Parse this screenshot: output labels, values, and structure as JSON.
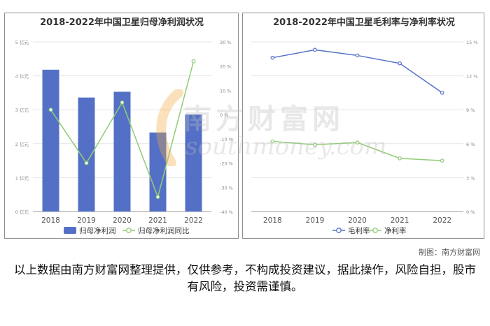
{
  "chart_data": [
    {
      "type": "bar+line",
      "title": "2018-2022年中国卫星归母净利润状况",
      "categories": [
        "2018",
        "2019",
        "2020",
        "2021",
        "2022"
      ],
      "series": [
        {
          "name": "归母净利润",
          "axis": "left",
          "kind": "bar",
          "values": [
            4.18,
            3.36,
            3.53,
            2.33,
            2.86
          ]
        },
        {
          "name": "归母净利润同比",
          "axis": "right",
          "kind": "line",
          "values": [
            2,
            -20,
            5,
            -34,
            22
          ]
        }
      ],
      "y_left": {
        "min": 0,
        "max": 5,
        "ticks": [
          "0 亿元",
          "1 亿元",
          "2 亿元",
          "3 亿元",
          "4 亿元",
          "5 亿元"
        ]
      },
      "y_right": {
        "min": -40,
        "max": 30,
        "ticks": [
          "-40 %",
          "-30 %",
          "-20 %",
          "-10 %",
          "0 %",
          "10 %",
          "20 %",
          "30 %"
        ]
      },
      "legend_position": "bottom",
      "colors": {
        "bar": "#5470c6",
        "line": "#91cc75"
      }
    },
    {
      "type": "line",
      "title": "2018-2022年中国卫星毛利率与净利率状况",
      "categories": [
        "2018",
        "2019",
        "2020",
        "2021",
        "2022"
      ],
      "series": [
        {
          "name": "毛利率",
          "values": [
            13.6,
            14.3,
            13.8,
            13.1,
            10.5
          ]
        },
        {
          "name": "净利率",
          "values": [
            6.2,
            5.9,
            6.1,
            4.7,
            4.5
          ]
        }
      ],
      "y_right": {
        "min": 0,
        "max": 15,
        "ticks": [
          "0 %",
          "3 %",
          "6 %",
          "9 %",
          "12 %",
          "15 %"
        ]
      },
      "legend_position": "bottom",
      "colors": {
        "line1": "#5470c6",
        "line2": "#91cc75"
      }
    }
  ],
  "watermark": {
    "cn": "南方财富网",
    "en": "southmoney.com"
  },
  "credit": "制图：南方财富网",
  "disclaimer": "以上数据由南方财富网整理提供，仅供参考，不构成投资建议，据此操作，风险自担，股市有风险，投资需谨慎。"
}
